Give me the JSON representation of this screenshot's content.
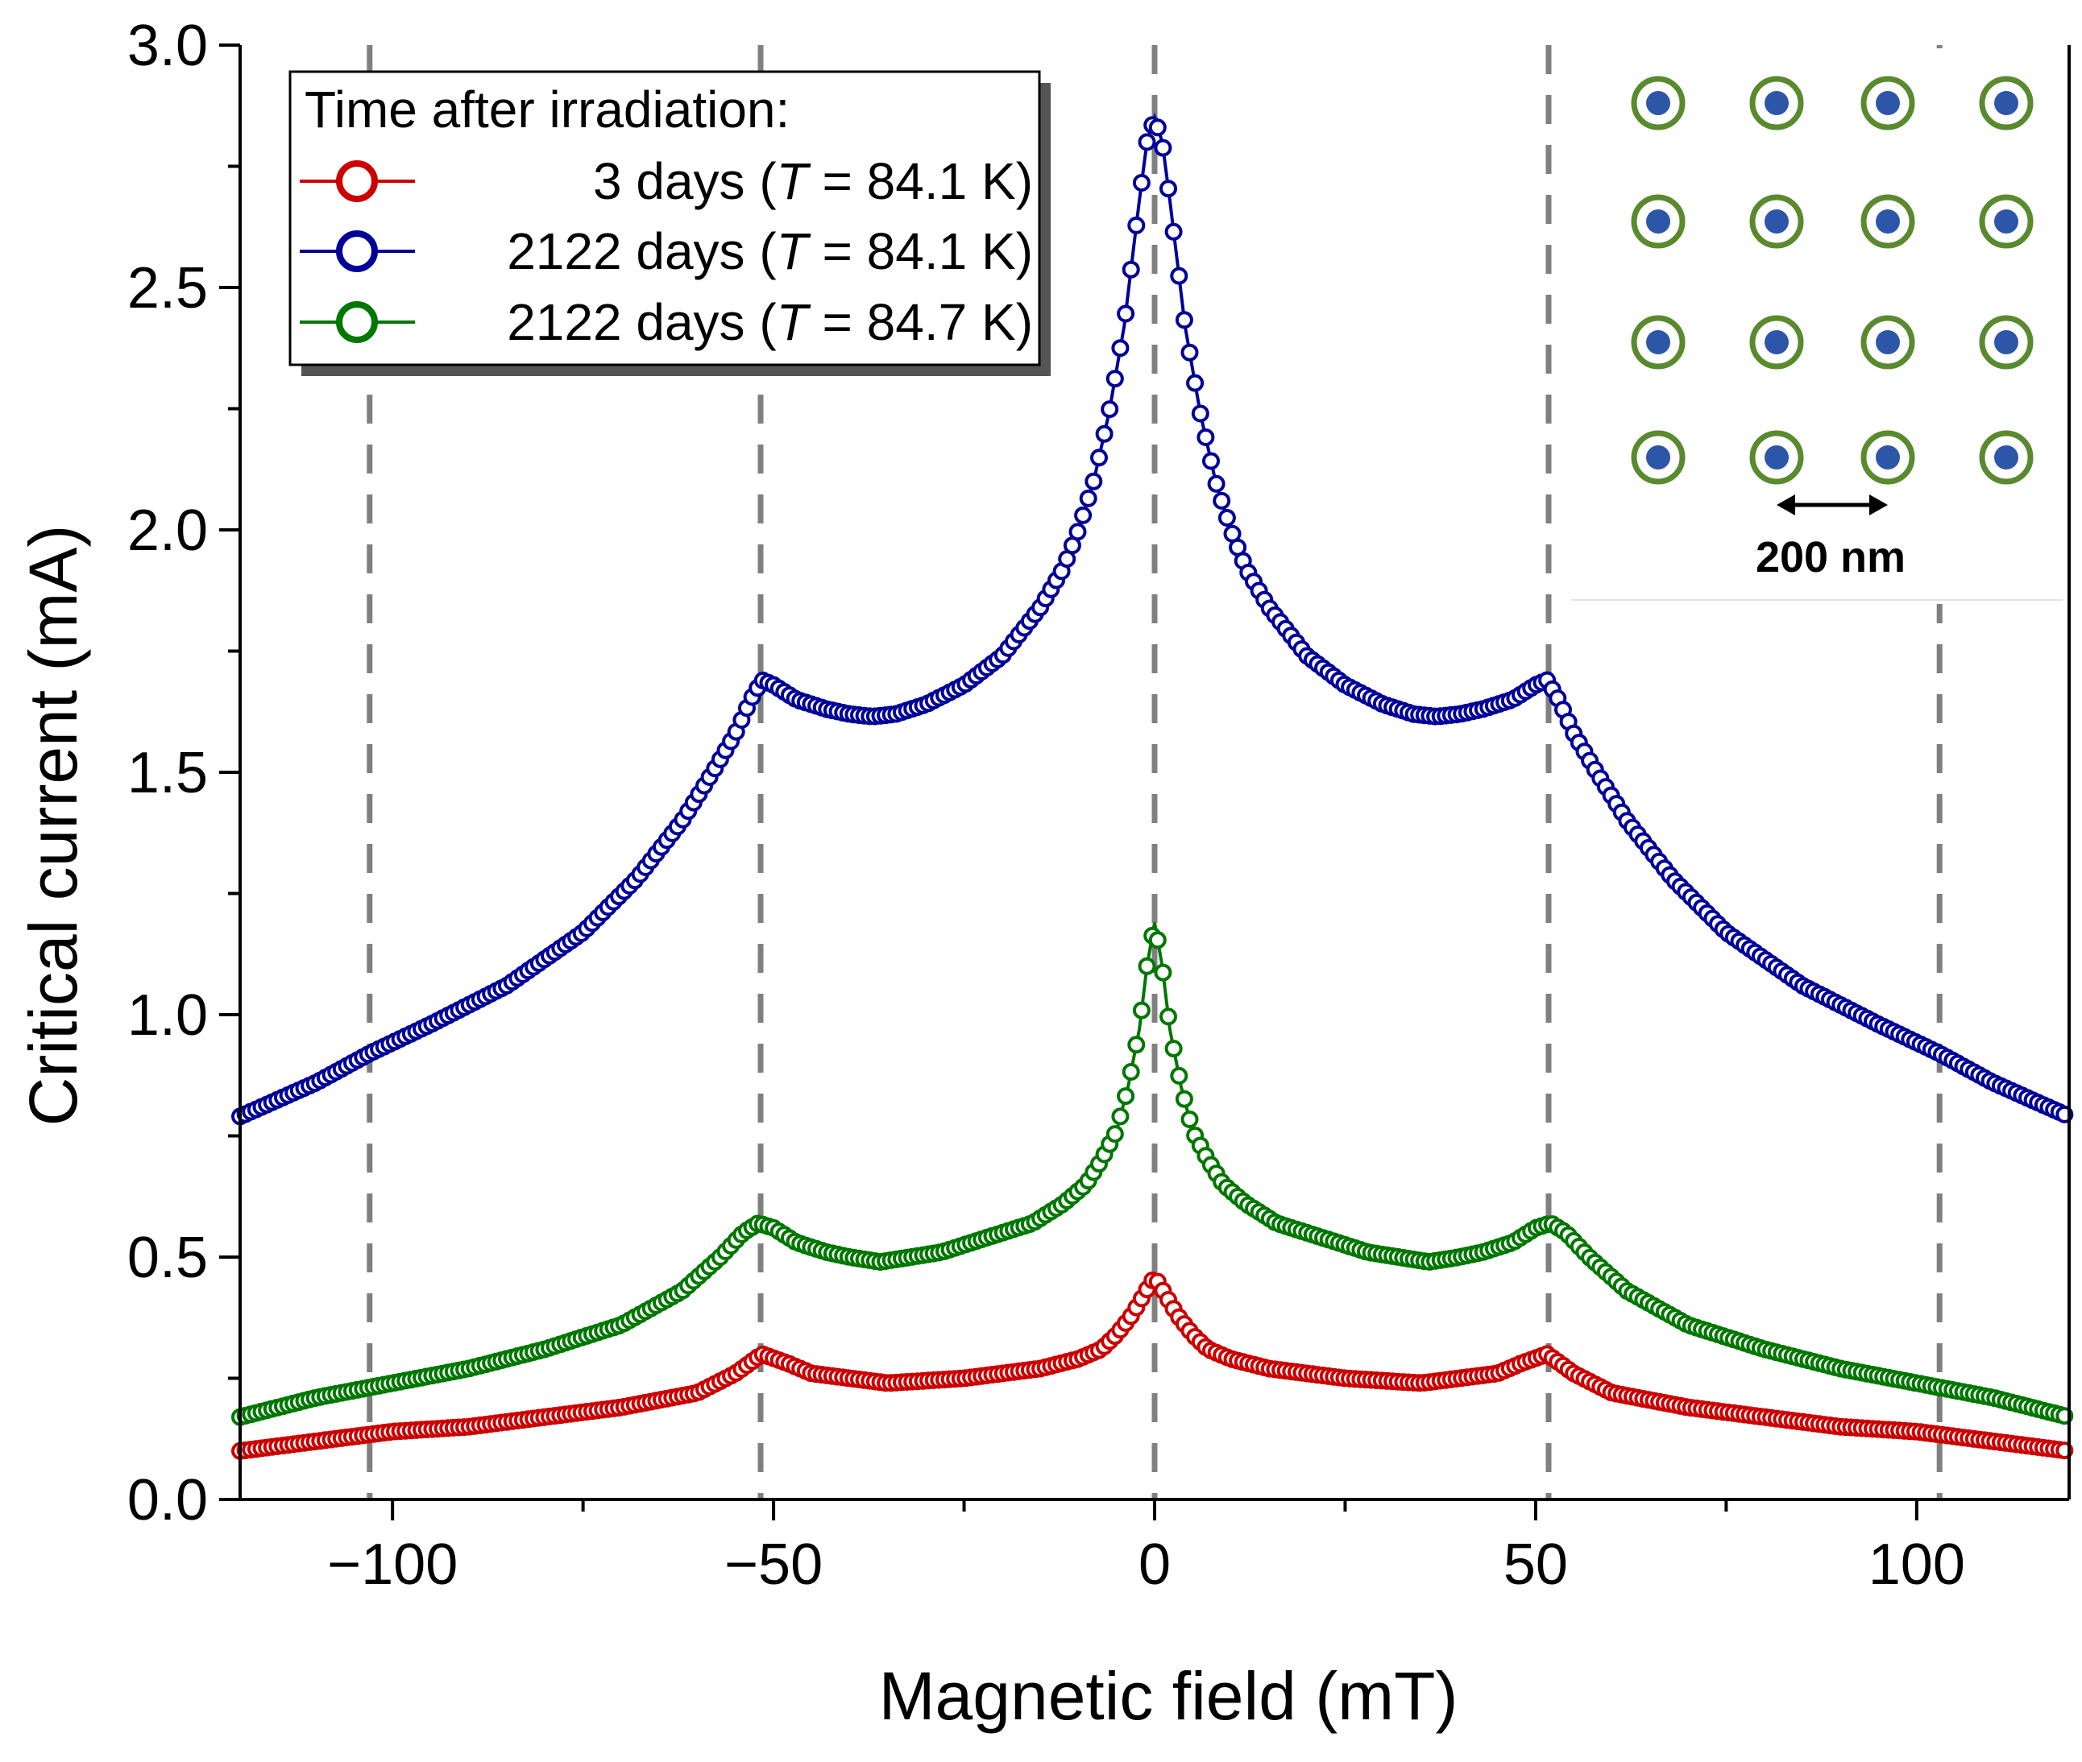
{
  "chart_data": {
    "type": "scatter",
    "title": "",
    "xlabel": "Magnetic field (mT)",
    "ylabel": "Critical current (mA)",
    "xlim": [
      -120,
      120
    ],
    "ylim": [
      0.0,
      3.0
    ],
    "x_ticks": [
      -100,
      -50,
      0,
      50,
      100
    ],
    "x_tick_labels": [
      "−100",
      "−50",
      "0",
      "50",
      "100"
    ],
    "y_ticks": [
      0.0,
      0.5,
      1.0,
      1.5,
      2.0,
      2.5,
      3.0
    ],
    "y_tick_labels": [
      "0.0",
      "0.5",
      "1.0",
      "1.5",
      "2.0",
      "2.5",
      "3.0"
    ],
    "grid": false,
    "vertical_reference_lines": [
      -103,
      -51.7,
      0,
      51.7,
      103
    ],
    "legend": {
      "title": "Time after irradiation:",
      "location": "top-left",
      "entries": [
        {
          "pre": "3 days (",
          "italic": "T",
          "post": " = 84.1 K)",
          "color": "#cc0000"
        },
        {
          "pre": "2122 days (",
          "italic": "T",
          "post": " = 84.1 K)",
          "color": "#000099"
        },
        {
          "pre": "2122 days (",
          "italic": "T",
          "post": " = 84.7 K)",
          "color": "#007700"
        }
      ]
    },
    "series": [
      {
        "name": "3 days (T = 84.1 K)",
        "color": "#cc0000",
        "x": [
          -120,
          -110,
          -100,
          -90,
          -80,
          -70,
          -60,
          -55,
          -51.5,
          -48,
          -45,
          -40,
          -35,
          -30,
          -25,
          -20,
          -15,
          -10,
          -7,
          -5,
          -3,
          -1.5,
          0,
          1.5,
          3,
          5,
          7,
          10,
          15,
          20,
          25,
          30,
          35,
          40,
          45,
          48,
          51.5,
          55,
          60,
          70,
          80,
          90,
          100,
          110,
          120
        ],
        "y": [
          0.1,
          0.12,
          0.14,
          0.15,
          0.17,
          0.19,
          0.22,
          0.26,
          0.3,
          0.28,
          0.26,
          0.25,
          0.24,
          0.245,
          0.25,
          0.26,
          0.27,
          0.29,
          0.31,
          0.34,
          0.38,
          0.42,
          0.46,
          0.42,
          0.38,
          0.34,
          0.31,
          0.29,
          0.27,
          0.26,
          0.25,
          0.245,
          0.24,
          0.25,
          0.26,
          0.28,
          0.3,
          0.26,
          0.22,
          0.19,
          0.17,
          0.15,
          0.14,
          0.12,
          0.1
        ]
      },
      {
        "name": "2122 days (T = 84.1 K)",
        "color": "#000099",
        "x": [
          -120,
          -110,
          -103,
          -95,
          -85,
          -75,
          -68,
          -62,
          -58,
          -55,
          -53,
          -51.5,
          -50,
          -47,
          -43,
          -40,
          -37,
          -34,
          -30,
          -25,
          -20,
          -15,
          -12,
          -10,
          -8,
          -6,
          -4,
          -3,
          -2,
          -1,
          0,
          1,
          2,
          3,
          4,
          6,
          8,
          10,
          12,
          15,
          20,
          25,
          30,
          34,
          37,
          40,
          43,
          47,
          50,
          51.5,
          53,
          55,
          58,
          62,
          68,
          75,
          85,
          95,
          103,
          110,
          120
        ],
        "y": [
          0.79,
          0.86,
          0.92,
          0.98,
          1.06,
          1.17,
          1.28,
          1.4,
          1.5,
          1.58,
          1.65,
          1.69,
          1.68,
          1.65,
          1.63,
          1.62,
          1.615,
          1.62,
          1.64,
          1.68,
          1.74,
          1.84,
          1.92,
          2.0,
          2.1,
          2.24,
          2.42,
          2.55,
          2.68,
          2.8,
          2.85,
          2.8,
          2.68,
          2.55,
          2.42,
          2.24,
          2.1,
          2.0,
          1.92,
          1.84,
          1.74,
          1.68,
          1.64,
          1.62,
          1.615,
          1.62,
          1.63,
          1.65,
          1.68,
          1.69,
          1.65,
          1.58,
          1.5,
          1.4,
          1.28,
          1.17,
          1.06,
          0.98,
          0.92,
          0.86,
          0.79
        ]
      },
      {
        "name": "2122 days (T = 84.7 K)",
        "color": "#007700",
        "x": [
          -120,
          -110,
          -100,
          -90,
          -80,
          -70,
          -62,
          -57,
          -54,
          -52,
          -50,
          -47,
          -43,
          -40,
          -36,
          -32,
          -28,
          -24,
          -20,
          -16,
          -12,
          -9,
          -7,
          -5,
          -3.5,
          -2,
          -1,
          0,
          1,
          2,
          3.5,
          5,
          7,
          9,
          12,
          16,
          20,
          24,
          28,
          32,
          36,
          40,
          43,
          47,
          50,
          52,
          54,
          57,
          62,
          70,
          80,
          90,
          100,
          110,
          120
        ],
        "y": [
          0.17,
          0.21,
          0.24,
          0.27,
          0.31,
          0.36,
          0.43,
          0.5,
          0.55,
          0.57,
          0.56,
          0.53,
          0.51,
          0.5,
          0.49,
          0.5,
          0.51,
          0.53,
          0.55,
          0.57,
          0.61,
          0.65,
          0.7,
          0.76,
          0.85,
          0.97,
          1.1,
          1.19,
          1.1,
          0.97,
          0.85,
          0.76,
          0.7,
          0.65,
          0.61,
          0.57,
          0.55,
          0.53,
          0.51,
          0.5,
          0.49,
          0.5,
          0.51,
          0.53,
          0.56,
          0.57,
          0.55,
          0.5,
          0.43,
          0.36,
          0.31,
          0.27,
          0.24,
          0.21,
          0.17
        ]
      }
    ]
  },
  "inset": {
    "scale_label": "200 nm",
    "rows": 4,
    "cols": 4,
    "ring_color": "#5a8a2e",
    "dot_color": "#2d56a8"
  }
}
